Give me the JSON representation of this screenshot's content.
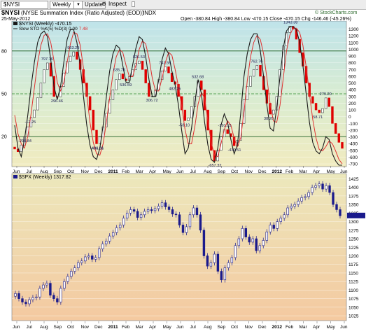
{
  "toolbar": {
    "symbol_value": "$NYSI",
    "period_value": "Weekly",
    "update_label": "Update",
    "inspect_label": "Inspect"
  },
  "header": {
    "title": "$NYSI",
    "subtitle": "(NYSE Summation Index (Ratio Adjusted) (EOD))",
    "exchange": "INDX",
    "date": "25-May-2012",
    "ohlc": "Open -380.84  High -380.84  Low -470.15  Close -470.15  Chg -146.46 (-45.26%)",
    "brand": "© StockCharts.com"
  },
  "legend": {
    "main": "$NYSI (Weekly) -470.15",
    "sto_prefix": "Slow STO %K(5) %D(3) ",
    "sto_k": "0.00",
    "sto_d": "7.48",
    "spx": "$SPX (Weekly) 1317.82"
  },
  "colors": {
    "sto_k": "#1a1a1a",
    "sto_d": "#e03030",
    "up_candle": "#ffffff",
    "down_candle": "#e00000",
    "spx_bar": "#1a1a8c"
  },
  "chart_data": [
    {
      "type": "line",
      "title": "$NYSI (Weekly)",
      "x_ticks": [
        "Jun",
        "Jul",
        "Aug",
        "Sep",
        "Oct",
        "Nov",
        "Dec",
        "2011",
        "Feb",
        "Mar",
        "Apr",
        "May",
        "Jun",
        "Jul",
        "Aug",
        "Sep",
        "Oct",
        "Nov",
        "Dec",
        "2012",
        "Feb",
        "Mar",
        "Apr",
        "May",
        "Jun"
      ],
      "right_axis": {
        "label_values": [
          1300,
          1200,
          1100,
          1000,
          900,
          800,
          700,
          600,
          500,
          400,
          300,
          200,
          100,
          0,
          -100,
          -200,
          -300,
          -400,
          -500,
          -600,
          -700
        ],
        "ylim": [
          -720,
          1400
        ]
      },
      "left_axis": {
        "label_values": [
          80,
          50,
          20
        ],
        "ylim": [
          0,
          100
        ]
      },
      "annotations": [
        "-404.81",
        "-295.84",
        "-12.25",
        "797.76",
        "296.46",
        "963.29",
        "-401.66",
        "635.78",
        "536.59",
        "826.53",
        "306.72",
        "741.56",
        "482.25",
        "-58.10",
        "532.68",
        "-657.32",
        "-191.15",
        "-430.51",
        "762.76",
        "38.20",
        "1343.38",
        "58.71",
        "279.20"
      ],
      "series": [
        {
          "name": "$NYSI",
          "values": [
            -480,
            -520,
            -420,
            -295,
            -150,
            -12,
            100,
            280,
            500,
            700,
            798,
            600,
            300,
            296,
            450,
            650,
            820,
            900,
            963,
            850,
            700,
            500,
            300,
            100,
            -200,
            -402,
            -300,
            -150,
            50,
            250,
            400,
            550,
            636,
            560,
            537,
            600,
            700,
            790,
            827,
            700,
            500,
            300,
            307,
            400,
            550,
            680,
            742,
            650,
            520,
            482,
            300,
            100,
            -58,
            -20,
            150,
            300,
            533,
            400,
            100,
            -200,
            -500,
            -657,
            -500,
            -300,
            -191,
            -250,
            -300,
            -431,
            -350,
            -100,
            250,
            450,
            600,
            700,
            763,
            600,
            400,
            200,
            38,
            100,
            300,
            700,
            1050,
            1250,
            1343,
            1300,
            1150,
            950,
            750,
            500,
            300,
            200,
            100,
            59,
            120,
            279,
            150,
            -100,
            -250,
            -381,
            -470
          ]
        },
        {
          "name": "Slow STO %K",
          "values": [
            28,
            12,
            6,
            18,
            35,
            55,
            72,
            86,
            92,
            94,
            90,
            74,
            55,
            46,
            55,
            72,
            88,
            95,
            95,
            86,
            70,
            48,
            28,
            14,
            6,
            4,
            12,
            28,
            48,
            66,
            78,
            84,
            82,
            70,
            58,
            58,
            70,
            82,
            90,
            88,
            76,
            60,
            48,
            48,
            60,
            74,
            82,
            78,
            66,
            56,
            42,
            24,
            8,
            12,
            26,
            44,
            60,
            50,
            30,
            14,
            4,
            2,
            12,
            28,
            36,
            30,
            18,
            8,
            14,
            36,
            62,
            78,
            88,
            92,
            92,
            80,
            62,
            42,
            26,
            24,
            40,
            62,
            82,
            94,
            97,
            97,
            95,
            86,
            70,
            50,
            30,
            16,
            10,
            8,
            12,
            20,
            18,
            8,
            3,
            0,
            0
          ]
        },
        {
          "name": "Slow STO %D",
          "values": [
            35,
            22,
            15,
            12,
            20,
            36,
            54,
            72,
            84,
            91,
            92,
            86,
            73,
            58,
            52,
            58,
            72,
            85,
            93,
            92,
            84,
            68,
            49,
            30,
            16,
            8,
            7,
            15,
            30,
            47,
            64,
            76,
            81,
            79,
            70,
            62,
            62,
            70,
            81,
            87,
            85,
            75,
            61,
            52,
            52,
            61,
            72,
            79,
            77,
            67,
            55,
            41,
            25,
            15,
            15,
            27,
            43,
            51,
            47,
            31,
            16,
            7,
            6,
            15,
            25,
            31,
            28,
            19,
            13,
            19,
            37,
            59,
            76,
            86,
            91,
            88,
            78,
            61,
            43,
            31,
            30,
            42,
            61,
            80,
            91,
            96,
            96,
            93,
            84,
            69,
            50,
            32,
            19,
            11,
            10,
            13,
            17,
            15,
            10,
            4,
            1
          ]
        }
      ]
    },
    {
      "type": "line",
      "title": "$SPX (Weekly)",
      "x_ticks": [
        "Jun",
        "Jul",
        "Aug",
        "Sep",
        "Oct",
        "Nov",
        "Dec",
        "2011",
        "Feb",
        "Mar",
        "Apr",
        "May",
        "Jun",
        "Jul",
        "Aug",
        "Sep",
        "Oct",
        "Nov",
        "Dec",
        "2012",
        "Feb",
        "Mar",
        "Apr",
        "May",
        "Jun"
      ],
      "right_axis": {
        "label_values": [
          1425,
          1400,
          1375,
          1350,
          1325,
          1300,
          1275,
          1250,
          1225,
          1200,
          1175,
          1150,
          1125,
          1100,
          1075,
          1050,
          1025
        ],
        "ylim": [
          1015,
          1432
        ]
      },
      "last_value": 1317.82,
      "series": [
        {
          "name": "$SPX",
          "values": [
            1090,
            1075,
            1065,
            1060,
            1072,
            1078,
            1080,
            1105,
            1115,
            1120,
            1085,
            1075,
            1065,
            1105,
            1125,
            1140,
            1155,
            1165,
            1180,
            1185,
            1197,
            1200,
            1190,
            1195,
            1220,
            1235,
            1243,
            1258,
            1268,
            1282,
            1290,
            1310,
            1325,
            1335,
            1330,
            1312,
            1320,
            1330,
            1335,
            1332,
            1338,
            1345,
            1355,
            1343,
            1335,
            1322,
            1320,
            1290,
            1268,
            1285,
            1320,
            1340,
            1320,
            1275,
            1200,
            1170,
            1180,
            1205,
            1155,
            1130,
            1165,
            1180,
            1195,
            1230,
            1250,
            1280,
            1255,
            1240,
            1250,
            1215,
            1230,
            1245,
            1270,
            1290,
            1280,
            1300,
            1310,
            1320,
            1340,
            1345,
            1350,
            1360,
            1370,
            1373,
            1385,
            1400,
            1405,
            1410,
            1395,
            1405,
            1385,
            1350,
            1335,
            1317
          ]
        }
      ]
    }
  ]
}
